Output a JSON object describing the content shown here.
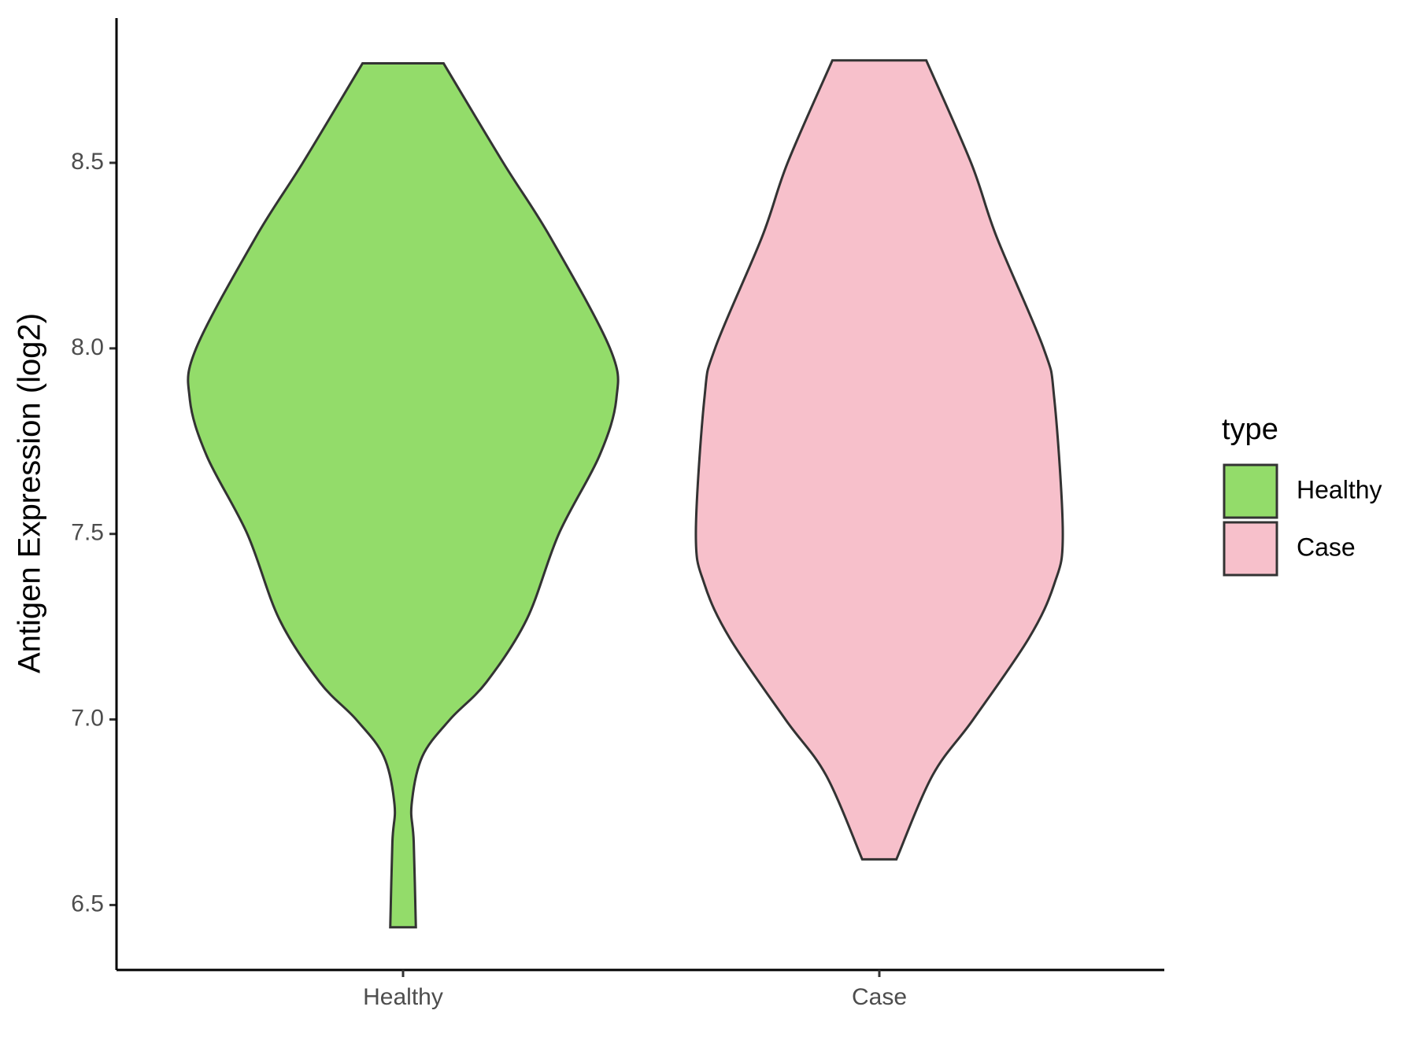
{
  "chart_data": {
    "type": "violin",
    "ylabel": "Antigen Expression (log2)",
    "categories": [
      "Healthy",
      "Case"
    ],
    "legend_title": "type",
    "ylim": [
      6.325,
      8.89
    ],
    "yticks": [
      {
        "value": 6.5,
        "label": "6.5"
      },
      {
        "value": 7.0,
        "label": "7.0"
      },
      {
        "value": 7.5,
        "label": "7.5"
      },
      {
        "value": 8.0,
        "label": "8.0"
      },
      {
        "value": 8.5,
        "label": "8.5"
      }
    ],
    "series": [
      {
        "name": "Healthy",
        "color": "#93dc6a",
        "y": [
          8.768,
          8.5,
          8.3,
          8.0,
          7.865,
          7.71,
          7.5,
          7.27,
          7.1,
          7.0,
          6.9,
          6.77,
          6.67,
          6.44
        ],
        "widths": [
          0.19,
          0.47,
          0.69,
          0.97,
          1.0,
          0.92,
          0.73,
          0.58,
          0.39,
          0.22,
          0.09,
          0.04,
          0.05,
          0.06
        ]
      },
      {
        "name": "Case",
        "color": "#f7c0cb",
        "y": [
          8.776,
          8.5,
          8.3,
          8.0,
          7.865,
          7.5,
          7.365,
          7.218,
          7.0,
          6.85,
          6.623
        ],
        "widths": [
          0.22,
          0.43,
          0.55,
          0.77,
          0.82,
          0.86,
          0.82,
          0.7,
          0.44,
          0.25,
          0.08
        ]
      }
    ]
  }
}
